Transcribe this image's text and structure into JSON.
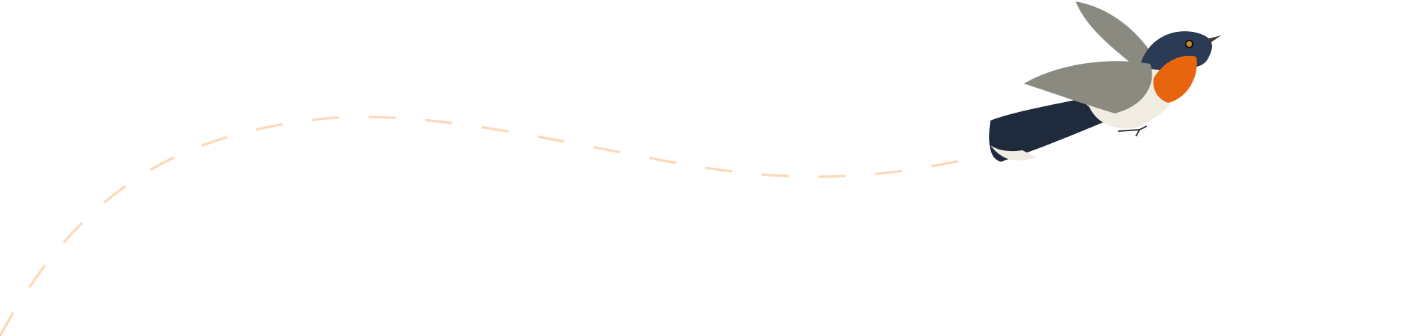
{
  "illustration": {
    "subject": "bird-icon",
    "colors": {
      "background": "#ffffff",
      "flight_path": "#fcd9b8",
      "bird_head": "#2b3a55",
      "bird_throat": "#e8650f",
      "bird_belly": "#f1ece2",
      "bird_wing": "#8b8a80",
      "bird_tail": "#1f2a3d"
    }
  }
}
